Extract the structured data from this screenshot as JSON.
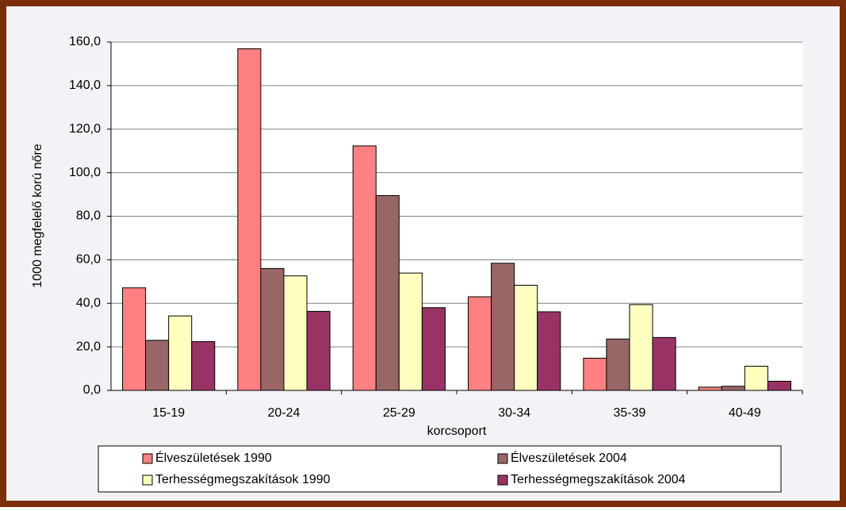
{
  "chart_data": {
    "type": "bar",
    "categories": [
      "15-19",
      "20-24",
      "25-29",
      "30-34",
      "35-39",
      "40-49"
    ],
    "series": [
      {
        "name": "Élveszületések 1990",
        "color": "#ff8080",
        "values": [
          47.1,
          156.9,
          112.3,
          43.0,
          14.8,
          1.5
        ]
      },
      {
        "name": "Élveszületések 2004",
        "color": "#996666",
        "values": [
          23.0,
          56.0,
          89.5,
          58.4,
          23.6,
          1.9
        ]
      },
      {
        "name": "Terhességmegszakítások 1990",
        "color": "#ffffc0",
        "values": [
          34.2,
          52.6,
          53.9,
          48.3,
          39.4,
          11.1
        ]
      },
      {
        "name": "Terhességmegszakítások 2004",
        "color": "#993366",
        "values": [
          22.4,
          36.3,
          38.0,
          36.1,
          24.3,
          4.2
        ]
      }
    ],
    "xlabel": "korcsoport",
    "ylabel": "1000 megfelelő korú nőre",
    "ylim": [
      0,
      160
    ],
    "yticks": [
      {
        "value": 0,
        "label": "0,0"
      },
      {
        "value": 20,
        "label": "20,0"
      },
      {
        "value": 40,
        "label": "40,0"
      },
      {
        "value": 60,
        "label": "60,0"
      },
      {
        "value": 80,
        "label": "80,0"
      },
      {
        "value": 100,
        "label": "100,0"
      },
      {
        "value": 120,
        "label": "120,0"
      },
      {
        "value": 140,
        "label": "140,0"
      },
      {
        "value": 160,
        "label": "160,0"
      }
    ],
    "grid": true,
    "legend": "bottom"
  }
}
